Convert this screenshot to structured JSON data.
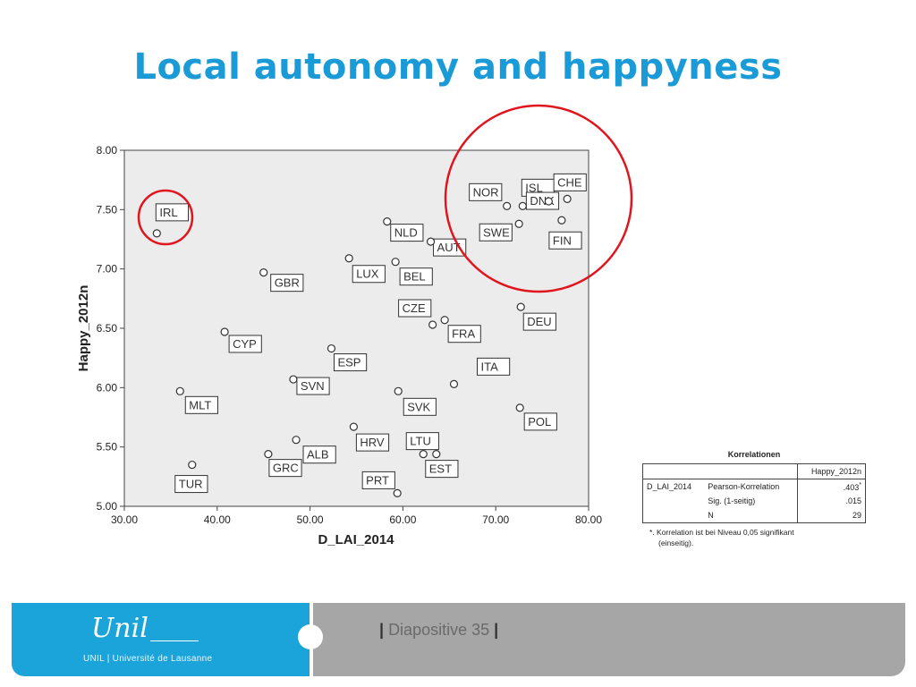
{
  "slide": {
    "title": "Local autonomy and happyness",
    "slide_label": "Diapositive 35"
  },
  "footer": {
    "logo_script": "Unil",
    "logo_caption": "UNIL | Université de Lausanne",
    "left_color": "#1ba4d9",
    "right_color": "#a6a6a6"
  },
  "highlight_color": "#e0161f",
  "chart_data": {
    "type": "scatter",
    "xlabel": "D_LAI_2014",
    "ylabel": "Happy_2012n",
    "xlim": [
      30,
      80
    ],
    "ylim": [
      5,
      8
    ],
    "x_ticks": [
      "30.00",
      "40.00",
      "50.00",
      "60.00",
      "70.00",
      "80.00"
    ],
    "y_ticks": [
      "5.00",
      "5.50",
      "6.00",
      "6.50",
      "7.00",
      "7.50",
      "8.00"
    ],
    "grid": false,
    "points": [
      {
        "label": "IRL",
        "x": 33.5,
        "y": 7.3
      },
      {
        "label": "GBR",
        "x": 45.0,
        "y": 6.97
      },
      {
        "label": "CYP",
        "x": 40.8,
        "y": 6.47
      },
      {
        "label": "MLT",
        "x": 36.0,
        "y": 5.97
      },
      {
        "label": "TUR",
        "x": 37.3,
        "y": 5.35
      },
      {
        "label": "SVN",
        "x": 48.2,
        "y": 6.07
      },
      {
        "label": "ALB",
        "x": 48.5,
        "y": 5.56
      },
      {
        "label": "GRC",
        "x": 45.5,
        "y": 5.44
      },
      {
        "label": "ESP",
        "x": 52.3,
        "y": 6.33
      },
      {
        "label": "LUX",
        "x": 54.2,
        "y": 7.09
      },
      {
        "label": "HRV",
        "x": 54.7,
        "y": 5.67
      },
      {
        "label": "NLD",
        "x": 58.3,
        "y": 7.4
      },
      {
        "label": "BEL",
        "x": 59.2,
        "y": 7.06
      },
      {
        "label": "SVK",
        "x": 59.5,
        "y": 5.97
      },
      {
        "label": "PRT",
        "x": 59.4,
        "y": 5.11
      },
      {
        "label": "LTU",
        "x": 62.2,
        "y": 5.44
      },
      {
        "label": "EST",
        "x": 63.6,
        "y": 5.44
      },
      {
        "label": "AUT",
        "x": 63.0,
        "y": 7.23
      },
      {
        "label": "CZE",
        "x": 63.2,
        "y": 6.53
      },
      {
        "label": "FRA",
        "x": 64.5,
        "y": 6.57
      },
      {
        "label": "ITA",
        "x": 65.5,
        "y": 6.03
      },
      {
        "label": "NOR",
        "x": 71.2,
        "y": 7.53
      },
      {
        "label": "SWE",
        "x": 72.5,
        "y": 7.38
      },
      {
        "label": "ISL",
        "x": 72.9,
        "y": 7.53
      },
      {
        "label": "DNK",
        "x": 75.7,
        "y": 7.57
      },
      {
        "label": "FIN",
        "x": 77.1,
        "y": 7.41
      },
      {
        "label": "CHE",
        "x": 77.7,
        "y": 7.59
      },
      {
        "label": "DEU",
        "x": 72.7,
        "y": 6.68
      },
      {
        "label": "POL",
        "x": 72.6,
        "y": 5.83
      }
    ]
  },
  "correlations": {
    "title": "Korrelationen",
    "column_header": "Happy_2012n",
    "variable": "D_LAI_2014",
    "rows": [
      {
        "stat": "Pearson-Korrelation",
        "value": ".403",
        "mark": "*"
      },
      {
        "stat": "Sig. (1-seitig)",
        "value": ".015",
        "mark": ""
      },
      {
        "stat": "N",
        "value": "29",
        "mark": ""
      }
    ],
    "footnote_line1": "*. Korrelation ist bei Niveau 0,05 signifikant",
    "footnote_line2": "(einseitig)."
  }
}
